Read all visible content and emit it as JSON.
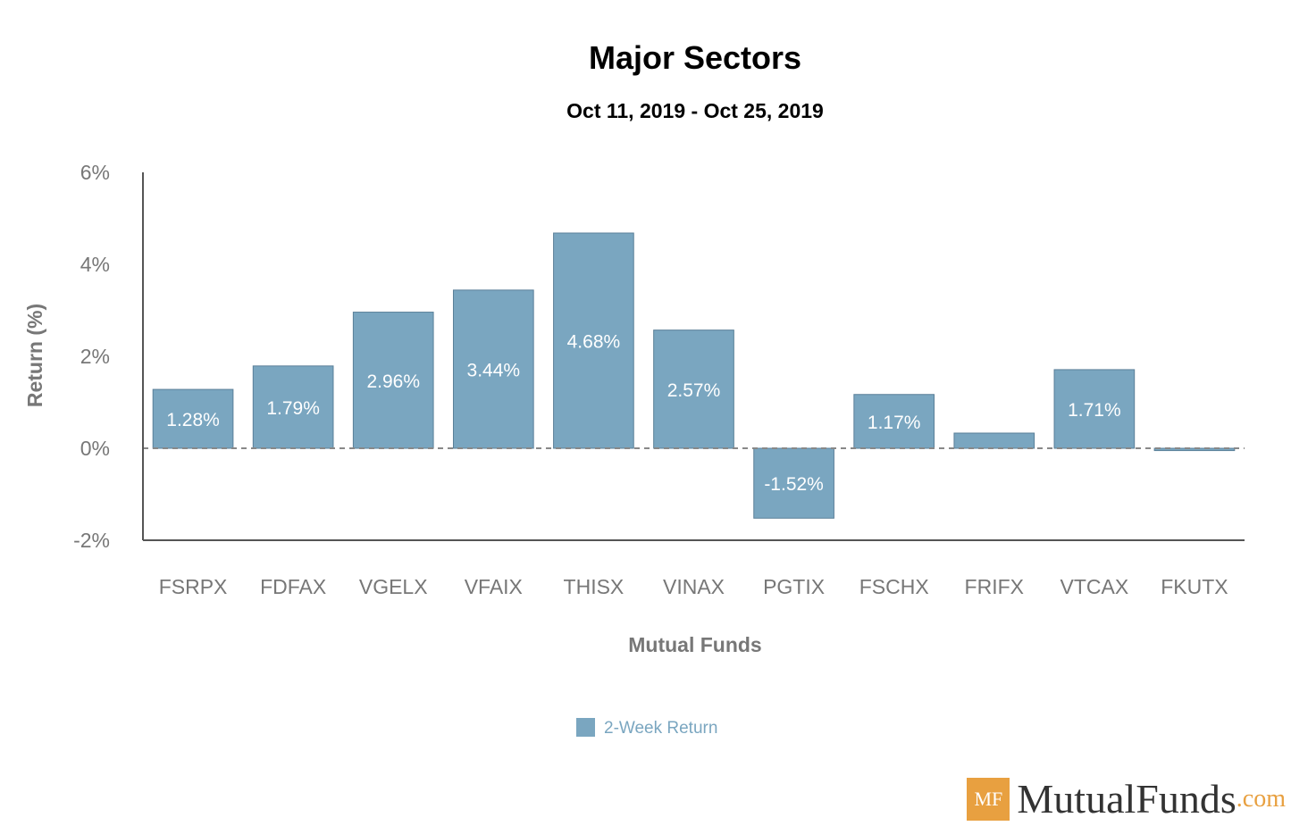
{
  "chart_data": {
    "type": "bar",
    "title": "Major Sectors",
    "subtitle": "Oct 11, 2019 - Oct 25, 2019",
    "xlabel": "Mutual Funds",
    "ylabel": "Return (%)",
    "ylim": [
      -2,
      6
    ],
    "yticks": [
      -2,
      0,
      2,
      4,
      6
    ],
    "ytick_labels": [
      "-2%",
      "0%",
      "2%",
      "4%",
      "6%"
    ],
    "categories": [
      "FSRPX",
      "FDFAX",
      "VGELX",
      "VFAIX",
      "THISX",
      "VINAX",
      "PGTIX",
      "FSCHX",
      "FRIFX",
      "VTCAX",
      "FKUTX"
    ],
    "series": [
      {
        "name": "2-Week Return",
        "values": [
          1.28,
          1.79,
          2.96,
          3.44,
          4.68,
          2.57,
          -1.52,
          1.17,
          0.33,
          1.71,
          -0.05
        ],
        "data_labels": [
          "1.28%",
          "1.79%",
          "2.96%",
          "3.44%",
          "4.68%",
          "2.57%",
          "-1.52%",
          "1.17%",
          "",
          "1.71%",
          ""
        ]
      }
    ],
    "legend": "bottom-center",
    "colors": {
      "bar": "#7aa6c0",
      "axis": "#555555",
      "zero_line": "#888888"
    }
  },
  "logo": {
    "mark": "MF",
    "name": "MutualFunds",
    "suffix": ".com"
  }
}
